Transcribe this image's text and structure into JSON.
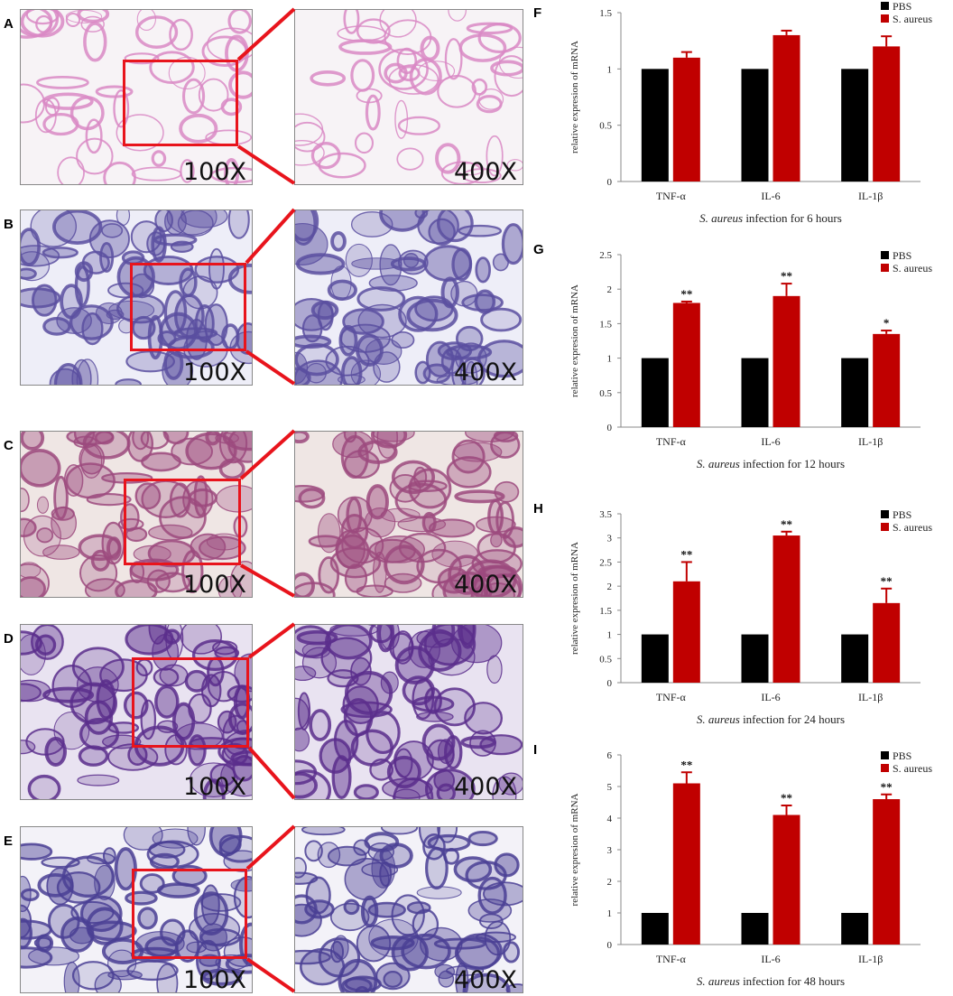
{
  "figure": {
    "histology_panels": [
      {
        "letter": "A",
        "magnification_left": "100X",
        "magnification_right": "400X",
        "stain_color": "#d988c4",
        "bg_color": "#f7f3f6"
      },
      {
        "letter": "B",
        "magnification_left": "100X",
        "magnification_right": "400X",
        "stain_color": "#5a4fa0",
        "bg_color": "#eeeef8"
      },
      {
        "letter": "C",
        "magnification_left": "100X",
        "magnification_right": "400X",
        "stain_color": "#9c4a7e",
        "bg_color": "#efe6e4"
      },
      {
        "letter": "D",
        "magnification_left": "100X",
        "magnification_right": "400X",
        "stain_color": "#5b2e8c",
        "bg_color": "#e9e3f1"
      },
      {
        "letter": "E",
        "magnification_left": "100X",
        "magnification_right": "400X",
        "stain_color": "#4a3f94",
        "bg_color": "#f3f2f8"
      }
    ],
    "colors": {
      "pbs": "#000000",
      "s_aureus": "#c00000",
      "zoom_box": "#e8141c"
    }
  },
  "chart_data": [
    {
      "panel": "F",
      "type": "bar",
      "categories": [
        "TNF-α",
        "IL-6",
        "IL-1β"
      ],
      "series": [
        {
          "name": "PBS",
          "values": [
            1.0,
            1.0,
            1.0
          ],
          "errors": [
            0,
            0,
            0
          ]
        },
        {
          "name": "S. aureus",
          "values": [
            1.1,
            1.3,
            1.2
          ],
          "errors": [
            0.05,
            0.04,
            0.09
          ]
        }
      ],
      "significance": [
        "",
        "",
        ""
      ],
      "ylabel": "relative expresion of mRNA",
      "xlabel_italic": "S. aureus",
      "xlabel_rest": " infection for 6 hours",
      "ylim": [
        0,
        1.5
      ],
      "yticks": [
        "0",
        "0.5",
        "1",
        "1.5"
      ],
      "ystep": 0.5,
      "legend_placement": "top-right"
    },
    {
      "panel": "G",
      "type": "bar",
      "categories": [
        "TNF-α",
        "IL-6",
        "IL-1β"
      ],
      "series": [
        {
          "name": "PBS",
          "values": [
            1.0,
            1.0,
            1.0
          ],
          "errors": [
            0,
            0,
            0
          ]
        },
        {
          "name": "S. aureus",
          "values": [
            1.8,
            1.9,
            1.35
          ],
          "errors": [
            0.02,
            0.18,
            0.05
          ]
        }
      ],
      "significance": [
        "**",
        "**",
        "*"
      ],
      "ylabel": "relative expresion of mRNA",
      "xlabel_italic": "S. aureus",
      "xlabel_rest": " infection for 12 hours",
      "ylim": [
        0,
        2.5
      ],
      "yticks": [
        "0",
        "0.5",
        "1",
        "1.5",
        "2",
        "2.5"
      ],
      "ystep": 0.5,
      "legend_placement": "top-right"
    },
    {
      "panel": "H",
      "type": "bar",
      "categories": [
        "TNF-α",
        "IL-6",
        "IL-1β"
      ],
      "series": [
        {
          "name": "PBS",
          "values": [
            1.0,
            1.0,
            1.0
          ],
          "errors": [
            0,
            0,
            0
          ]
        },
        {
          "name": "S. aureus",
          "values": [
            2.1,
            3.05,
            1.65
          ],
          "errors": [
            0.4,
            0.08,
            0.3
          ]
        }
      ],
      "significance": [
        "**",
        "**",
        "**"
      ],
      "ylabel": "relative expresion of mRNA",
      "xlabel_italic": "S. aureus",
      "xlabel_rest": " infection for 24 hours",
      "ylim": [
        0,
        3.5
      ],
      "yticks": [
        "0",
        "0.5",
        "1",
        "1.5",
        "2",
        "2.5",
        "3",
        "3.5"
      ],
      "ystep": 0.5,
      "legend_placement": "top-right"
    },
    {
      "panel": "I",
      "type": "bar",
      "categories": [
        "TNF-α",
        "IL-6",
        "IL-1β"
      ],
      "series": [
        {
          "name": "PBS",
          "values": [
            1.0,
            1.0,
            1.0
          ],
          "errors": [
            0,
            0,
            0
          ]
        },
        {
          "name": "S. aureus",
          "values": [
            5.1,
            4.1,
            4.6
          ],
          "errors": [
            0.35,
            0.3,
            0.15
          ]
        }
      ],
      "significance": [
        "**",
        "**",
        "**"
      ],
      "ylabel": "relative expresion of mRNA",
      "xlabel_italic": "S. aureus",
      "xlabel_rest": " infection for 48 hours",
      "ylim": [
        0,
        6
      ],
      "yticks": [
        "0",
        "1",
        "2",
        "3",
        "4",
        "5",
        "6"
      ],
      "ystep": 1,
      "legend_placement": "top-right"
    }
  ]
}
